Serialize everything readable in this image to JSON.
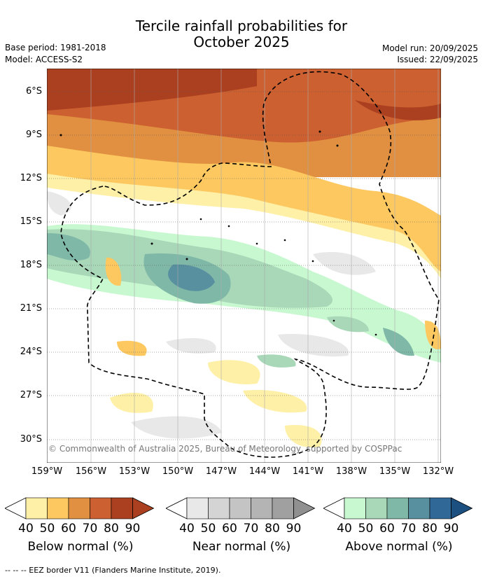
{
  "title": {
    "line1": "Tercile rainfall probabilities for",
    "line2": "October 2025"
  },
  "meta": {
    "base_period": "Base period: 1981-2018",
    "model": "Model: ACCESS-S2",
    "model_run": "Model run: 20/09/2025",
    "issued": "Issued: 22/09/2025"
  },
  "map": {
    "lat_ticks": [
      "6°S",
      "9°S",
      "12°S",
      "15°S",
      "18°S",
      "21°S",
      "24°S",
      "27°S",
      "30°S"
    ],
    "lon_ticks": [
      "159°W",
      "156°W",
      "153°W",
      "150°W",
      "147°W",
      "144°W",
      "141°W",
      "138°W",
      "135°W",
      "132°W"
    ],
    "copyright": "© Commonwealth of Australia 2025, Bureau of Meteorology, supported by COSPPac"
  },
  "colorbars": [
    {
      "name": "below",
      "label": "Below normal (%)",
      "ticks": [
        "40",
        "50",
        "60",
        "70",
        "80",
        "90"
      ],
      "colors": [
        "#fff0a8",
        "#fdc860",
        "#e09040",
        "#cc6030",
        "#aa4020",
        "#aa4020"
      ]
    },
    {
      "name": "near",
      "label": "Near normal (%)",
      "ticks": [
        "40",
        "50",
        "60",
        "70",
        "80",
        "90"
      ],
      "colors": [
        "#e8e8e8",
        "#d4d4d4",
        "#c4c4c4",
        "#b4b4b4",
        "#a0a0a0",
        "#909090"
      ]
    },
    {
      "name": "above",
      "label": "Above normal (%)",
      "ticks": [
        "40",
        "50",
        "60",
        "70",
        "80",
        "90"
      ],
      "colors": [
        "#c8f8d0",
        "#a8d8b8",
        "#80b8a8",
        "#5890a0",
        "#306898",
        "#1c5080"
      ]
    }
  ],
  "footer": "--  --  -- EEZ border V11 (Flanders Marine Institute, 2019)."
}
